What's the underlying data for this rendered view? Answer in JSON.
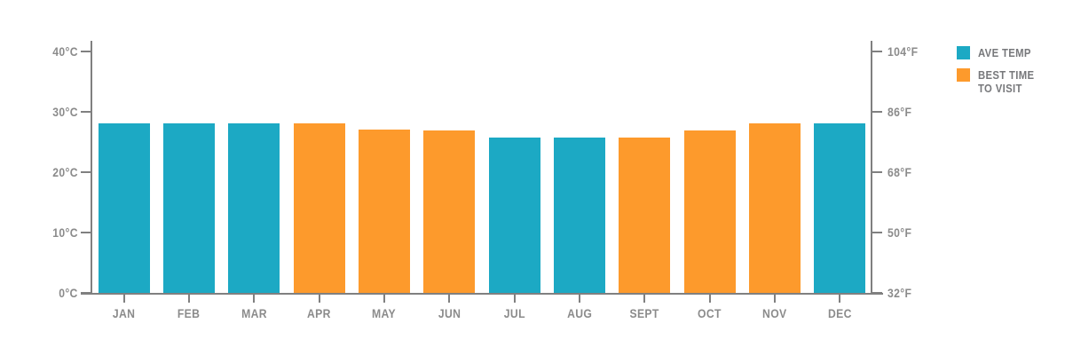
{
  "legend": {
    "items": [
      {
        "id": "ave-temp",
        "lines": [
          "AVE TEMP"
        ],
        "color": "#1CA9C4"
      },
      {
        "id": "best-time",
        "lines": [
          "BEST TIME",
          "TO VISIT"
        ],
        "color": "#FD9A2C"
      }
    ]
  },
  "colors": {
    "ave_temp": "#1CA9C4",
    "best_time": "#FD9A2C",
    "axis": "#808080",
    "axis_label": "#8B8B8B",
    "legend_text": "#77787B"
  },
  "chart_data": {
    "type": "bar",
    "title": "",
    "categories": [
      "JAN",
      "FEB",
      "MAR",
      "APR",
      "MAY",
      "JUN",
      "JUL",
      "AUG",
      "SEPT",
      "OCT",
      "NOV",
      "DEC"
    ],
    "values_c": [
      28.1,
      28.1,
      28.1,
      28.1,
      27.0,
      26.9,
      25.7,
      25.7,
      25.7,
      26.9,
      28.1,
      28.1
    ],
    "bar_series": [
      0,
      0,
      0,
      1,
      1,
      1,
      0,
      0,
      1,
      1,
      1,
      0
    ],
    "series": [
      {
        "name": "AVE TEMP",
        "color": "#1CA9C4"
      },
      {
        "name": "BEST TIME TO VISIT",
        "color": "#FD9A2C"
      }
    ],
    "y_axis_left": {
      "unit": "°C",
      "range": [
        0,
        40
      ],
      "tick_values": [
        0,
        10,
        20,
        30,
        40
      ],
      "ticks": [
        "0°C",
        "10°C",
        "20°C",
        "30°C",
        "40°C"
      ]
    },
    "y_axis_right": {
      "unit": "°F",
      "range": [
        32,
        104
      ],
      "ticks": [
        "32°F",
        "50°F",
        "68°F",
        "86°F",
        "104°F"
      ]
    },
    "grid": false,
    "legend_position": "top-right"
  }
}
